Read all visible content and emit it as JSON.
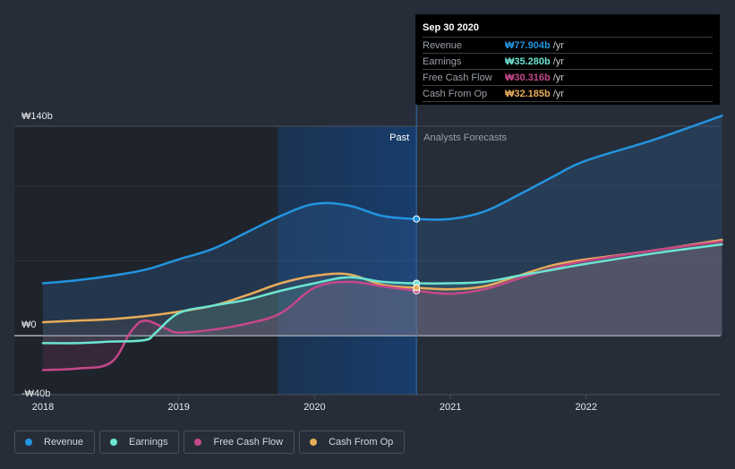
{
  "tooltip": {
    "date": "Sep 30 2020",
    "rows": [
      {
        "label": "Revenue",
        "value": "₩77.904b",
        "unit": "/yr",
        "color": "#2394df"
      },
      {
        "label": "Earnings",
        "value": "₩35.280b",
        "unit": "/yr",
        "color": "#6ce5d2"
      },
      {
        "label": "Free Cash Flow",
        "value": "₩30.316b",
        "unit": "/yr",
        "color": "#c6478a"
      },
      {
        "label": "Cash From Op",
        "value": "₩32.185b",
        "unit": "/yr",
        "color": "#e8ac5a"
      }
    ]
  },
  "legend": [
    {
      "label": "Revenue",
      "color": "#2394df"
    },
    {
      "label": "Earnings",
      "color": "#6ce5d2"
    },
    {
      "label": "Free Cash Flow",
      "color": "#c6478a"
    },
    {
      "label": "Cash From Op",
      "color": "#e8ac5a"
    }
  ],
  "chart_data": {
    "type": "line",
    "title": "",
    "xlabel": "",
    "ylabel": "",
    "y_tick_labels": [
      "₩140b",
      "₩0",
      "-₩40b"
    ],
    "y_ticks": [
      140,
      0,
      -40
    ],
    "ylim": [
      -40,
      140
    ],
    "x_tick_labels": [
      "2018",
      "2019",
      "2020",
      "2021",
      "2022"
    ],
    "x_ticks": [
      2018,
      2019,
      2020,
      2021,
      2022
    ],
    "xlim": [
      2018,
      2023
    ],
    "divider": {
      "x": 2020.75,
      "left_label": "Past",
      "right_label": "Analysts Forecasts"
    },
    "past_highlight_start": 2019.73,
    "grid": true,
    "series": [
      {
        "name": "Revenue",
        "color": "#2394df",
        "x": [
          2018.0,
          2018.25,
          2018.5,
          2018.75,
          2019.0,
          2019.25,
          2019.5,
          2019.75,
          2020.0,
          2020.25,
          2020.5,
          2020.75,
          2021.0,
          2021.25,
          2021.5,
          2021.75,
          2022.0,
          2022.5,
          2023.0
        ],
        "y": [
          35,
          37,
          40,
          44,
          51,
          58,
          69,
          80,
          88,
          87,
          80,
          78,
          78,
          83,
          94,
          106,
          117,
          131,
          147
        ]
      },
      {
        "name": "Earnings",
        "color": "#6ce5d2",
        "x": [
          2018.0,
          2018.25,
          2018.5,
          2018.75,
          2018.83,
          2019.0,
          2019.25,
          2019.5,
          2019.75,
          2020.0,
          2020.25,
          2020.5,
          2020.75,
          2021.0,
          2021.25,
          2021.5,
          2021.75,
          2022.0,
          2022.5,
          2023.0
        ],
        "y": [
          -5,
          -5,
          -4,
          -3,
          2,
          15,
          20,
          24,
          30,
          35,
          39,
          36,
          35,
          35,
          36,
          40,
          44,
          48,
          55,
          61
        ]
      },
      {
        "name": "Free Cash Flow",
        "color": "#c6478a",
        "x": [
          2018.0,
          2018.25,
          2018.5,
          2018.65,
          2018.75,
          2018.9,
          2019.0,
          2019.25,
          2019.5,
          2019.75,
          2020.0,
          2020.25,
          2020.5,
          2020.75,
          2021.0,
          2021.25,
          2021.5,
          2021.75,
          2022.0,
          2022.5,
          2023.0
        ],
        "y": [
          -23,
          -22,
          -18,
          3,
          10,
          5,
          2,
          4,
          8,
          15,
          32,
          36,
          33,
          30,
          28,
          31,
          38,
          45,
          50,
          57,
          63
        ]
      },
      {
        "name": "Cash From Op",
        "color": "#e8ac5a",
        "x": [
          2018.0,
          2018.25,
          2018.5,
          2018.75,
          2019.0,
          2019.25,
          2019.5,
          2019.75,
          2020.0,
          2020.25,
          2020.5,
          2020.75,
          2021.0,
          2021.25,
          2021.5,
          2021.75,
          2022.0,
          2022.5,
          2023.0
        ],
        "y": [
          9,
          10,
          11,
          13,
          16,
          20,
          27,
          35,
          40,
          41,
          34,
          32,
          31,
          33,
          40,
          47,
          51,
          57,
          64
        ]
      }
    ]
  }
}
